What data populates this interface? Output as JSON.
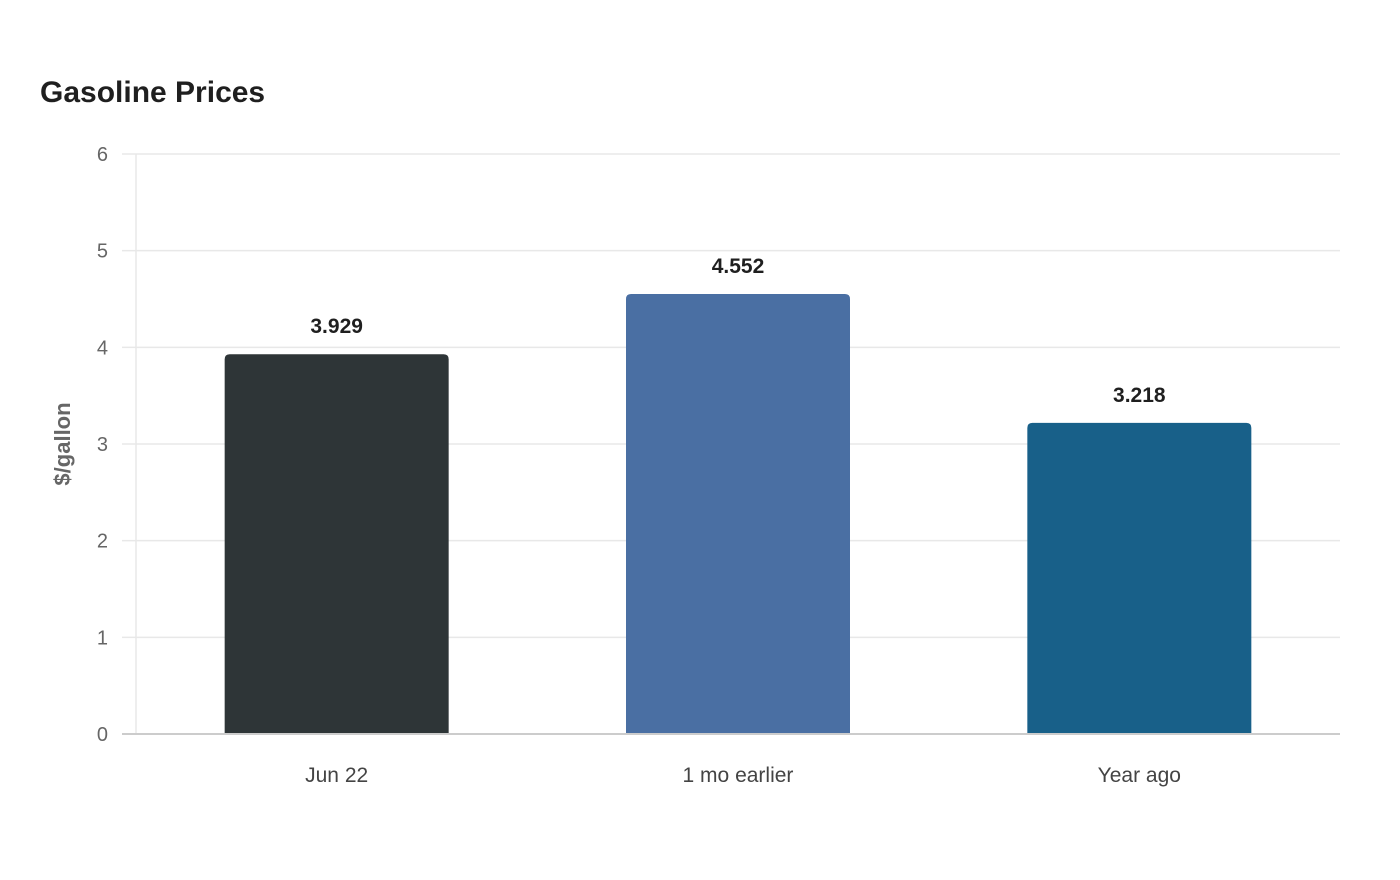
{
  "chart_data": {
    "type": "bar",
    "title": "Gasoline Prices",
    "xlabel": "",
    "ylabel": "$/gallon",
    "ylim": [
      0,
      6
    ],
    "yticks": [
      0,
      1,
      2,
      3,
      4,
      5,
      6
    ],
    "grid": true,
    "legend": "none",
    "categories": [
      "Jun 22",
      "1 mo earlier",
      "Year ago"
    ],
    "values": [
      3.929,
      4.552,
      3.218
    ],
    "value_labels": [
      "3.929",
      "4.552",
      "3.218"
    ],
    "colors": [
      "#2e3537",
      "#4a6fa3",
      "#186089"
    ],
    "gridline_color": "#e8e8e8",
    "axis_color": "#cccccc"
  }
}
